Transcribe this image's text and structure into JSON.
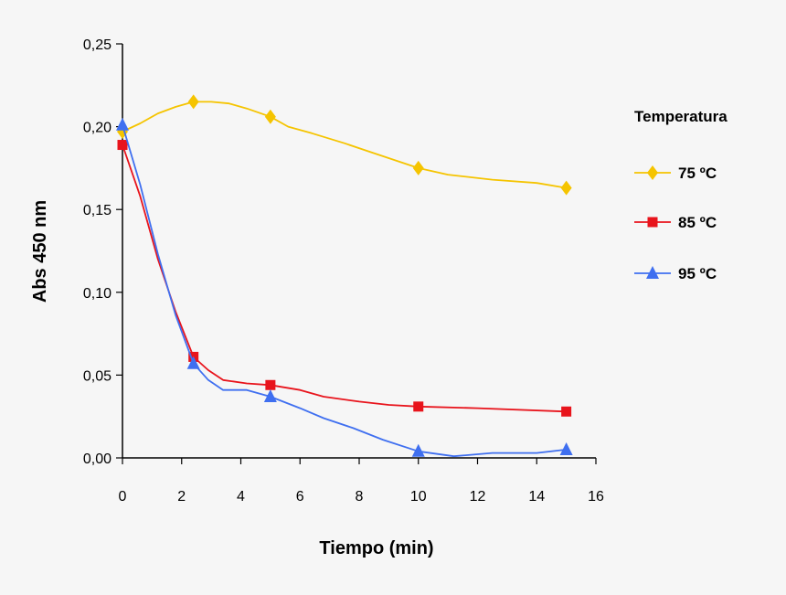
{
  "chart_data": {
    "type": "line",
    "title": "",
    "xlabel": "Tiempo (min)",
    "ylabel": "Abs 450 nm",
    "xlim": [
      0,
      16
    ],
    "ylim": [
      0,
      0.25
    ],
    "x_ticks": [
      "0",
      "2",
      "4",
      "6",
      "8",
      "10",
      "12",
      "14",
      "16"
    ],
    "x_tick_values": [
      0,
      2,
      4,
      6,
      8,
      10,
      12,
      14,
      16
    ],
    "y_ticks": [
      "0,00",
      "0,05",
      "0,10",
      "0,15",
      "0,20",
      "0,25"
    ],
    "y_tick_values": [
      0,
      0.05,
      0.1,
      0.15,
      0.2,
      0.25
    ],
    "grid": false,
    "legend": {
      "title": "Temperatura",
      "position": "right"
    },
    "series": [
      {
        "name": "75 ºC",
        "color": "#f5c400",
        "marker": "diamond",
        "x": [
          0,
          2.4,
          5,
          10,
          15
        ],
        "y": [
          0.197,
          0.215,
          0.206,
          0.175,
          0.163
        ],
        "curve": [
          [
            0,
            0.197
          ],
          [
            0.6,
            0.202
          ],
          [
            1.2,
            0.208
          ],
          [
            1.8,
            0.212
          ],
          [
            2.4,
            0.215
          ],
          [
            3.0,
            0.215
          ],
          [
            3.6,
            0.214
          ],
          [
            4.2,
            0.211
          ],
          [
            5.0,
            0.206
          ],
          [
            5.6,
            0.2
          ],
          [
            6.4,
            0.196
          ],
          [
            7.5,
            0.19
          ],
          [
            8.5,
            0.184
          ],
          [
            10.0,
            0.175
          ],
          [
            11.0,
            0.171
          ],
          [
            12.5,
            0.168
          ],
          [
            14.0,
            0.166
          ],
          [
            15.0,
            0.163
          ]
        ]
      },
      {
        "name": "85 ºC",
        "color": "#e8141c",
        "marker": "square",
        "x": [
          0,
          2.4,
          5,
          10,
          15
        ],
        "y": [
          0.189,
          0.061,
          0.044,
          0.031,
          0.028
        ],
        "curve": [
          [
            0,
            0.189
          ],
          [
            0.6,
            0.158
          ],
          [
            1.2,
            0.12
          ],
          [
            1.8,
            0.088
          ],
          [
            2.4,
            0.061
          ],
          [
            2.9,
            0.053
          ],
          [
            3.4,
            0.047
          ],
          [
            4.2,
            0.045
          ],
          [
            5.0,
            0.044
          ],
          [
            6.0,
            0.041
          ],
          [
            6.8,
            0.037
          ],
          [
            8.0,
            0.034
          ],
          [
            9.0,
            0.032
          ],
          [
            10.0,
            0.031
          ],
          [
            12.0,
            0.03
          ],
          [
            15.0,
            0.028
          ]
        ]
      },
      {
        "name": "95 ºC",
        "color": "#3f6ff0",
        "marker": "triangle",
        "x": [
          0,
          2.4,
          5,
          10,
          15
        ],
        "y": [
          0.201,
          0.057,
          0.037,
          0.004,
          0.005
        ],
        "curve": [
          [
            0,
            0.201
          ],
          [
            0.6,
            0.165
          ],
          [
            1.2,
            0.123
          ],
          [
            1.8,
            0.086
          ],
          [
            2.4,
            0.057
          ],
          [
            2.9,
            0.047
          ],
          [
            3.4,
            0.041
          ],
          [
            4.2,
            0.041
          ],
          [
            5.0,
            0.037
          ],
          [
            6.0,
            0.03
          ],
          [
            6.8,
            0.024
          ],
          [
            7.8,
            0.018
          ],
          [
            8.8,
            0.011
          ],
          [
            10.0,
            0.004
          ],
          [
            11.2,
            0.001
          ],
          [
            12.5,
            0.003
          ],
          [
            14.0,
            0.003
          ],
          [
            15.0,
            0.005
          ]
        ]
      }
    ]
  }
}
